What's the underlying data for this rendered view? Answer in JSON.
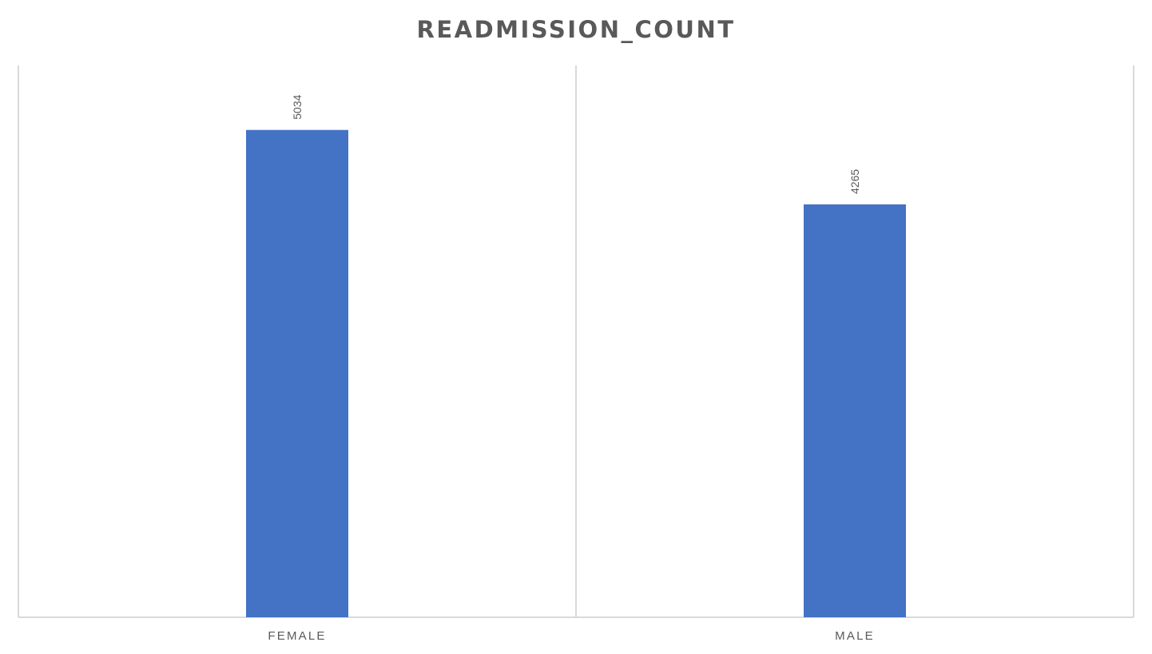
{
  "chart_data": {
    "type": "bar",
    "title": "READMISSION_COUNT",
    "xlabel": "",
    "ylabel": "",
    "categories": [
      "FEMALE",
      "MALE"
    ],
    "values": [
      5034,
      4265
    ],
    "data_labels": [
      "5034",
      "4265"
    ],
    "ylim": [
      0,
      5700
    ],
    "grid": false,
    "legend": "none",
    "bar_color": "#4472C4",
    "axis_color": "#D9D9D9",
    "text_color": "#595959"
  }
}
